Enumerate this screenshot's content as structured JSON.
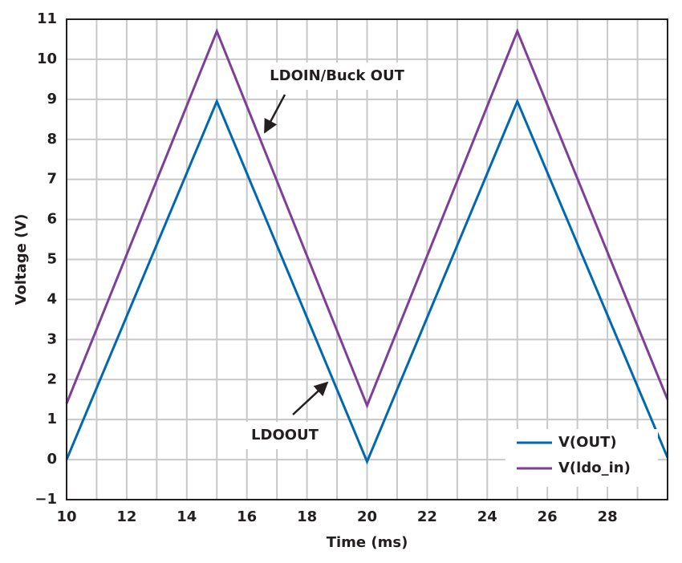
{
  "chart_data": {
    "type": "line",
    "x_label": "Time (ms)",
    "y_label": "Voltage (V)",
    "x": [
      10,
      15,
      20,
      25,
      30
    ],
    "series": [
      {
        "name": "V(OUT)",
        "color": "#0067b1",
        "values": [
          0,
          8.95,
          -0.05,
          8.95,
          0.05
        ]
      },
      {
        "name": "V(ldo_in)",
        "color": "#7d3f98",
        "values": [
          1.4,
          10.7,
          1.35,
          10.7,
          1.5
        ]
      }
    ],
    "xlim": [
      10,
      30
    ],
    "xticks": [
      10,
      12,
      14,
      16,
      18,
      20,
      22,
      24,
      26,
      28
    ],
    "xminor": [
      11,
      13,
      15,
      17,
      19,
      21,
      23,
      25,
      27,
      29
    ],
    "ylim": [
      -1,
      11
    ],
    "yticks": [
      {
        "value": -1,
        "label": "−1"
      },
      0,
      1,
      2,
      3,
      4,
      5,
      6,
      7,
      8,
      9,
      10,
      11
    ],
    "grid": true,
    "legend": "lower right",
    "annotations": [
      "LDOIN/Buck OUT",
      "LDOOUT"
    ]
  }
}
